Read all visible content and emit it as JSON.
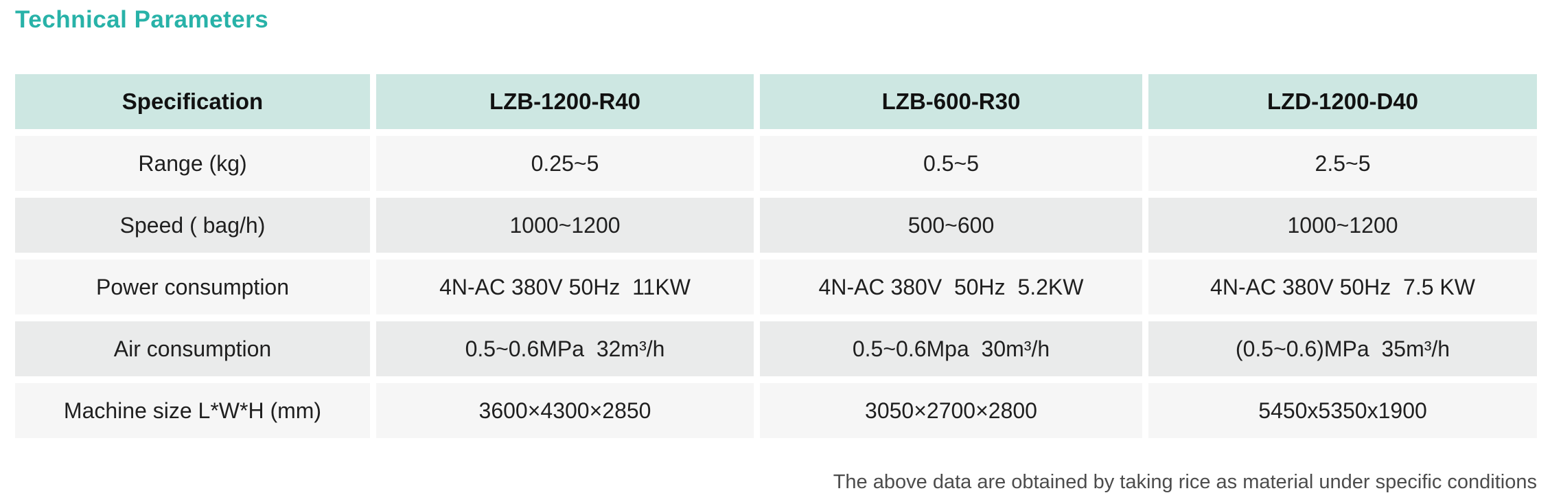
{
  "page": {
    "title": "Technical Parameters",
    "footnote": "The above data are obtained by taking rice as material under specific conditions"
  },
  "colors": {
    "title_accent": "#28b2a8",
    "header_bg": "#cde7e2",
    "row_light_bg": "#f6f6f6",
    "row_dark_bg": "#eaebeb",
    "text": "#1f1f1f",
    "footnote_text": "#4c4c4c"
  },
  "table": {
    "columns": [
      "Specification",
      "LZB-1200-R40",
      "LZB-600-R30",
      "LZD-1200-D40"
    ],
    "rows": [
      {
        "label": "Range (kg)",
        "values": [
          "0.25~5",
          "0.5~5",
          "2.5~5"
        ]
      },
      {
        "label": "Speed ( bag/h)",
        "values": [
          "1000~1200",
          "500~600",
          "1000~1200"
        ]
      },
      {
        "label": "Power consumption",
        "values": [
          "4N-AC 380V 50Hz  11KW",
          "4N-AC 380V  50Hz  5.2KW",
          "4N-AC 380V 50Hz  7.5 KW"
        ]
      },
      {
        "label": "Air consumption",
        "values": [
          "0.5~0.6MPa  32m³/h",
          "0.5~0.6Mpa  30m³/h",
          "(0.5~0.6)MPa  35m³/h"
        ]
      },
      {
        "label": "Machine size L*W*H (mm)",
        "values": [
          "3600×4300×2850",
          "3050×2700×2800",
          "5450x5350x1900"
        ]
      }
    ]
  }
}
